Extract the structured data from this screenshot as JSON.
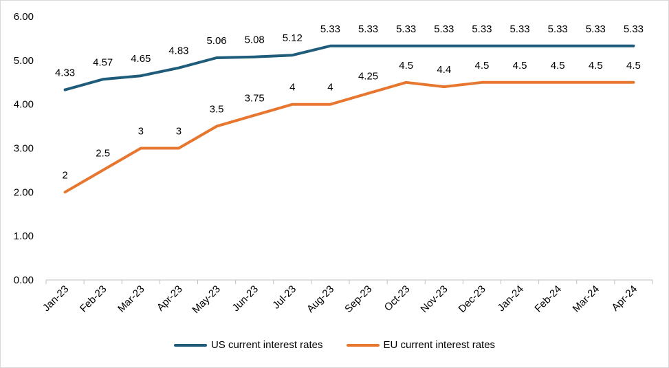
{
  "chart_data": {
    "type": "line",
    "categories": [
      "Jan-23",
      "Feb-23",
      "Mar-23",
      "Apr-23",
      "May-23",
      "Jun-23",
      "Jul-23",
      "Aug-23",
      "Sep-23",
      "Oct-23",
      "Nov-23",
      "Dec-23",
      "Jan-24",
      "Feb-24",
      "Mar-24",
      "Apr-24"
    ],
    "series": [
      {
        "name": "US current interest rates",
        "color": "#1f5c7a",
        "values": [
          4.33,
          4.57,
          4.65,
          4.83,
          5.06,
          5.08,
          5.12,
          5.33,
          5.33,
          5.33,
          5.33,
          5.33,
          5.33,
          5.33,
          5.33,
          5.33
        ],
        "labels": [
          "4.33",
          "4.57",
          "4.65",
          "4.83",
          "5.06",
          "5.08",
          "5.12",
          "5.33",
          "5.33",
          "5.33",
          "5.33",
          "5.33",
          "5.33",
          "5.33",
          "5.33",
          "5.33"
        ]
      },
      {
        "name": "EU current interest rates",
        "color": "#e7772f",
        "values": [
          2,
          2.5,
          3,
          3,
          3.5,
          3.75,
          4,
          4,
          4.25,
          4.5,
          4.4,
          4.5,
          4.5,
          4.5,
          4.5,
          4.5
        ],
        "labels": [
          "2",
          "2.5",
          "3",
          "3",
          "3.5",
          "3.75",
          "4",
          "4",
          "4.25",
          "4.5",
          "4.4",
          "4.5",
          "4.5",
          "4.5",
          "4.5",
          "4.5"
        ]
      }
    ],
    "yticks": [
      "0.00",
      "1.00",
      "2.00",
      "3.00",
      "4.00",
      "5.00",
      "6.00"
    ],
    "ylim": [
      0,
      6
    ],
    "grid": false,
    "legend_position": "bottom"
  }
}
